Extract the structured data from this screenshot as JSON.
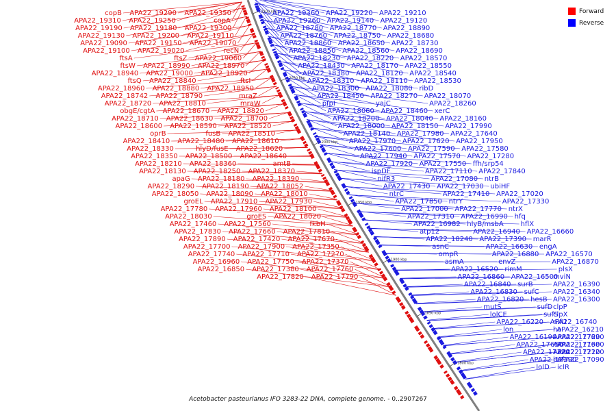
{
  "caption": {
    "organism": "Acetobacter pasteurianus IFO 3283-22 DNA, complete genome.",
    "range": " - 0..2907267"
  },
  "legend": {
    "forward_label": "Forward",
    "reverse_label": "Reverse",
    "forward_color": "#ff0000",
    "reverse_color": "#0000ff"
  },
  "colors": {
    "forward": "#e01010",
    "reverse": "#1a1ae0",
    "backbone": "#808080"
  },
  "scale_ticks": [
    "2100 kbp",
    "2050 kbp",
    "2000 kbp",
    "1950 kbp",
    "1900 kbp",
    "1850 kbp",
    "1800 kbp"
  ],
  "forward_labels": [
    "APA22_19350",
    "APA22_19290",
    "copB",
    "copA",
    "APA22_19250",
    "APA22_19310",
    "APA22_19300",
    "APA22_19180",
    "APA22_19190",
    "APA22_19110",
    "APA22_19200",
    "APA22_19130",
    "APA22_19070",
    "APA22_19150",
    "APA22_19090",
    "recN",
    "APA22_19020",
    "APA22_19100",
    "APA22_19060",
    "ftsZ",
    "ftsA",
    "APA22_18970",
    "APA22_18990",
    "ftsW",
    "APA22_18920",
    "APA22_19000",
    "APA22_18940",
    "ftsI",
    "APA22_18840",
    "ftsQ",
    "APA22_18950",
    "APA22_18880",
    "APA22_18960",
    "mraZ",
    "APA22_18790",
    "APA22_18742",
    "mraW",
    "APA22_18810",
    "APA22_18720",
    "APA22_18820",
    "APA22_18670",
    "obgE/cgtA",
    "APA22_18700",
    "APA22_18630",
    "APA22_18710",
    "APA22_18520",
    "APA22_18590",
    "APA22_18600",
    "APA22_18510",
    "fusB",
    "oprB",
    "APA22_18610",
    "APA22_18480",
    "APA22_18410",
    "APA22_18620",
    "hlyD/fusE",
    "APA22_18330",
    "APA22_18640",
    "APA22_18500",
    "APA22_18350",
    "amtB",
    "APA22_18360",
    "APA22_18210",
    "APA22_18370",
    "APA22_18250",
    "APA22_18130",
    "APA22_18390",
    "APA22_18180",
    "apaG",
    "APA22_18052",
    "APA22_18190",
    "APA22_18290",
    "APA22_18010",
    "APA22_18090",
    "APA22_18050",
    "APA22_17930",
    "APA22_17910",
    "groEL",
    "APA22_18100",
    "APA22_17960",
    "APA22_17780",
    "APA22_18020",
    "groES",
    "APA22_18030",
    "fkbH",
    "APA22_17560",
    "APA22_17460",
    "APA22_17810",
    "APA22_17660",
    "APA22_17830",
    "APA22_17670",
    "APA22_17420",
    "APA22_17890",
    "APA22_17350",
    "APA22_17900",
    "APA22_17700",
    "APA22_17270",
    "APA22_17710",
    "APA22_17740",
    "APA22_17370",
    "APA22_17750",
    "APA22_16960",
    "APA22_17760",
    "APA22_17380",
    "APA22_16850",
    "APA22_17790",
    "APA22_17820"
  ],
  "reverse_labels": [
    "APA22_19360",
    "APA22_19220",
    "APA22_19210",
    "APA22_19260",
    "APA22_19140",
    "APA22_19120",
    "APA22_18780",
    "APA22_18770",
    "APA22_18890",
    "APA22_18760",
    "APA22_18750",
    "APA22_18680",
    "APA22_18860",
    "APA22_18650",
    "APA22_18730",
    "APA22_18850",
    "APA22_18560",
    "APA22_18690",
    "APA22_18230",
    "APA22_18220",
    "APA22_18570",
    "APA22_18430",
    "APA22_18170",
    "APA22_18550",
    "APA22_18380",
    "APA22_18120",
    "APA22_18540",
    "APA22_18310",
    "APA22_18110",
    "APA22_18530",
    "APA22_18300",
    "APA22_18080",
    "ribD",
    "APA22_18450",
    "APA22_18270",
    "APA22_18070",
    "pfpI",
    "yajC",
    "APA22_18260",
    "APA22_18060",
    "APA22_18460",
    "xerC",
    "APA22_18200",
    "APA22_18040",
    "APA22_18160",
    "APA22_18000",
    "APA22_18150",
    "APA22_17990",
    "APA22_18140",
    "APA22_17980",
    "APA22_17640",
    "APA22_17970",
    "APA22_17620",
    "APA22_17950",
    "APA22_17600",
    "APA22_17590",
    "APA22_17580",
    "APA22_17940",
    "APA22_17570",
    "APA22_17280",
    "APA22_17920",
    "APA22_17550",
    "ffh/srp54",
    "ispDF",
    "APA22_17110",
    "APA22_17840",
    "nifR3",
    "APA22_17080",
    "ntrB",
    "APA22_17430",
    "APA22_17030",
    "ubiHF",
    "ntrC",
    "APA22_17410",
    "APA22_17020",
    "APA22_17850",
    "ntrY",
    "APA22_17330",
    "APA22_17000",
    "APA22_17770",
    "ntrX",
    "APA22_17310",
    "APA22_16990",
    "hfq",
    "APA22_16982",
    "hlyB/msbA",
    "hflX",
    "atp12",
    "APA22_16940",
    "APA22_16660",
    "APA22_18240",
    "APA22_17390",
    "marR",
    "asnC",
    "APA22_16630",
    "engA",
    "ompR",
    "APA22_16880",
    "APA22_16570",
    "asmA",
    "envZ",
    "APA22_16870",
    "APA22_16520",
    "rimM",
    "plsX",
    "APA22_16860",
    "APA22_16500",
    "mviN",
    "APA22_16840",
    "surB",
    "APA22_16390",
    "APA22_16830",
    "sufC",
    "APA22_16340",
    "APA22_16820",
    "hesB",
    "APA22_16300",
    "mutS",
    "sufD",
    "clpP",
    "lolCE",
    "sufS",
    "clpX",
    "APA22_16220",
    "APA22_16740",
    "nifU",
    "lon",
    "APA22_16210",
    "hu",
    "APA22_16190",
    "APA22_17690",
    "APA22_17720",
    "APA22_17650",
    "APA22_17680",
    "APA22_17190",
    "APA22_17320",
    "APA22_17120",
    "APA22_17220",
    "APA22_17290",
    "APA22_17090",
    "baf",
    "lolD",
    "iclR"
  ]
}
